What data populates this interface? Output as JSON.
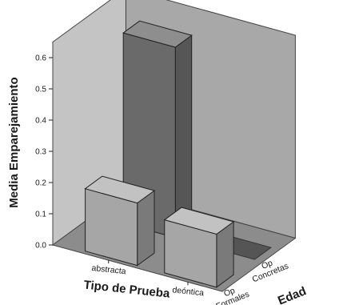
{
  "chart_data": {
    "type": "bar",
    "style": "3d-clustered",
    "ylabel": "Media Emparejamiento",
    "xlabel": "Tipo de Prueba",
    "zlabel": "Edad",
    "ylim": [
      0,
      0.65
    ],
    "yticks": [
      "0.0",
      "0.1",
      "0.2",
      "0.3",
      "0.4",
      "0.5",
      "0.6"
    ],
    "categories": [
      "abstracta",
      "deóntica"
    ],
    "depth_categories": [
      "Op Formales",
      "Op Concretas"
    ],
    "depth_category_lines": [
      [
        "Op",
        "Formales"
      ],
      [
        "Op",
        "Concretas"
      ]
    ],
    "series": [
      {
        "name": "Op Formales",
        "values": [
          0.2,
          0.17
        ]
      },
      {
        "name": "Op Concretas",
        "values": [
          0.61,
          0.0
        ]
      }
    ],
    "grid": false,
    "colors": {
      "back_wall": "#a8a8a8",
      "side_wall": "#c4c4c4",
      "floor": "#8c8c8c",
      "bar_front": "#a6a6a6",
      "bar_top": "#c2c2c2",
      "bar_side": "#7a7a7a",
      "rear_bar_front": "#6a6a6a",
      "rear_bar_top": "#8e8e8e",
      "rear_bar_side": "#565656"
    }
  }
}
